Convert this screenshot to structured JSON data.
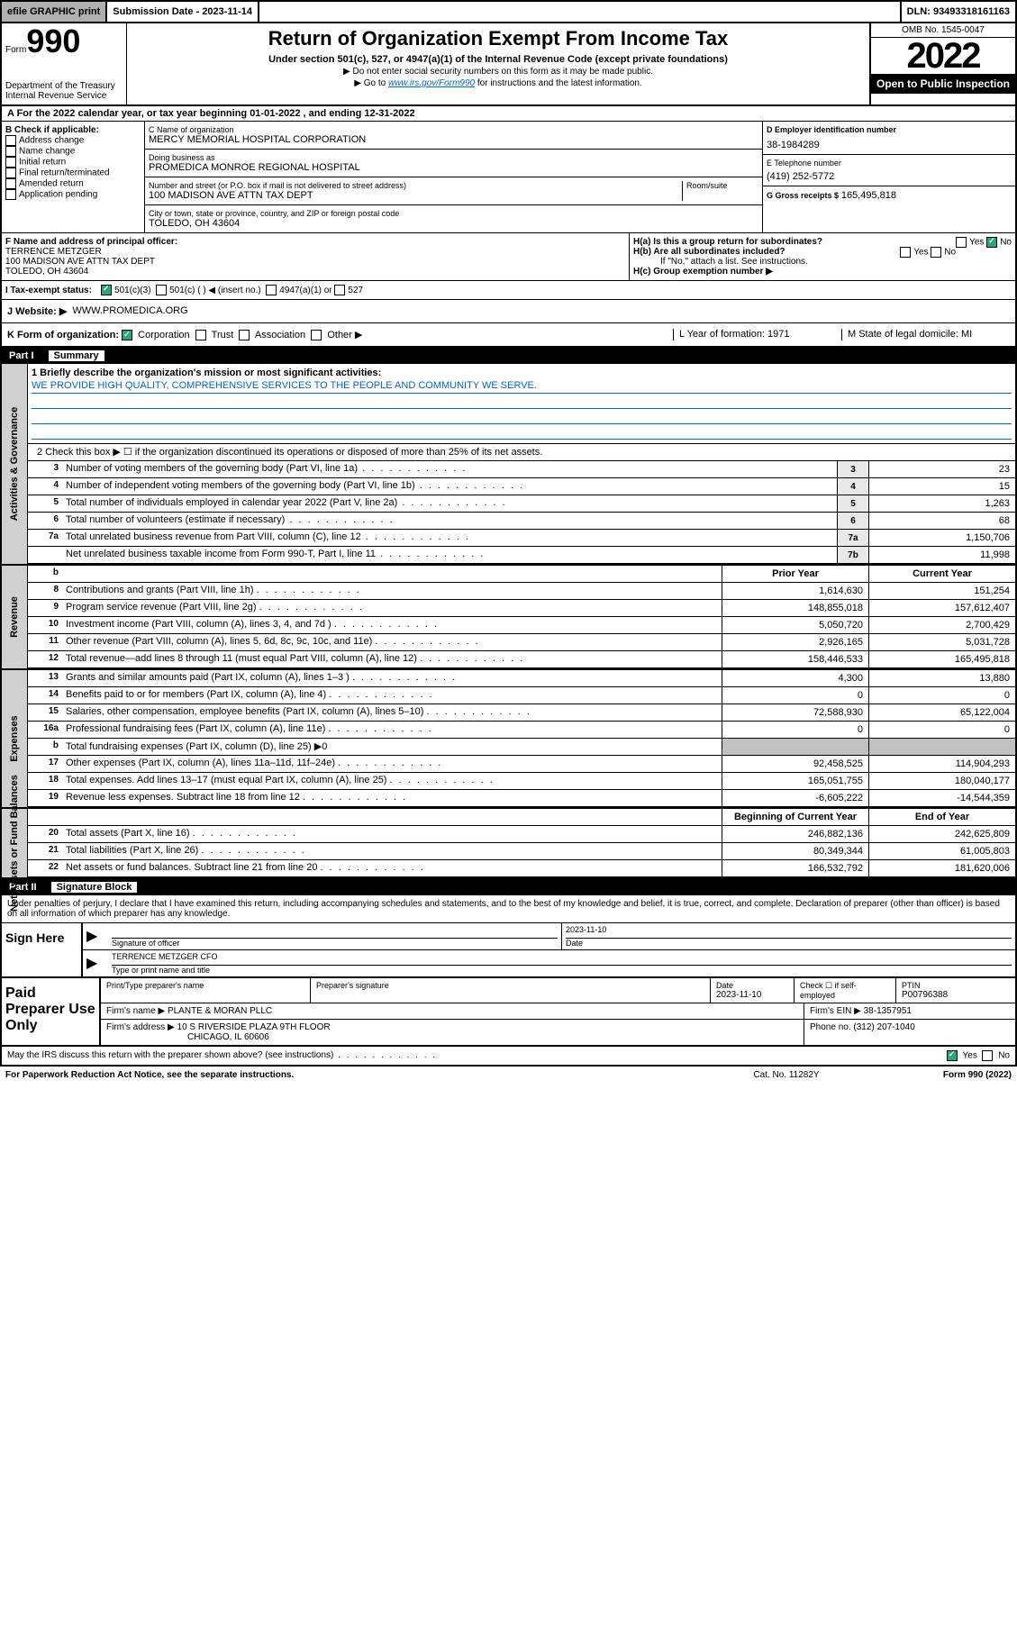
{
  "topbar": {
    "efile": "efile GRAPHIC print",
    "subdate_lbl": "Submission Date - 2023-11-14",
    "dln": "DLN: 93493318161163"
  },
  "header": {
    "form_word": "Form",
    "form_num": "990",
    "dept": "Department of the Treasury",
    "irs": "Internal Revenue Service",
    "title": "Return of Organization Exempt From Income Tax",
    "sub": "Under section 501(c), 527, or 4947(a)(1) of the Internal Revenue Code (except private foundations)",
    "note1": "▶ Do not enter social security numbers on this form as it may be made public.",
    "note2_pre": "▶ Go to ",
    "note2_link": "www.irs.gov/Form990",
    "note2_post": " for instructions and the latest information.",
    "omb": "OMB No. 1545-0047",
    "year": "2022",
    "open": "Open to Public Inspection"
  },
  "secA": "A For the 2022 calendar year, or tax year beginning 01-01-2022   , and ending 12-31-2022",
  "colB": {
    "hdr": "B Check if applicable:",
    "opts": [
      "Address change",
      "Name change",
      "Initial return",
      "Final return/terminated",
      "Amended return",
      "Application pending"
    ]
  },
  "colC": {
    "name_lbl": "C Name of organization",
    "name": "MERCY MEMORIAL HOSPITAL CORPORATION",
    "dba_lbl": "Doing business as",
    "dba": "PROMEDICA MONROE REGIONAL HOSPITAL",
    "addr_lbl": "Number and street (or P.O. box if mail is not delivered to street address)",
    "room_lbl": "Room/suite",
    "addr": "100 MADISON AVE ATTN TAX DEPT",
    "city_lbl": "City or town, state or province, country, and ZIP or foreign postal code",
    "city": "TOLEDO, OH  43604"
  },
  "colD": {
    "ein_lbl": "D Employer identification number",
    "ein": "38-1984289",
    "tel_lbl": "E Telephone number",
    "tel": "(419) 252-5772",
    "gross_lbl": "G Gross receipts $",
    "gross": "165,495,818"
  },
  "rowF": {
    "lbl": "F Name and address of principal officer:",
    "name": "TERRENCE METZGER",
    "addr": "100 MADISON AVE ATTN TAX DEPT",
    "city": "TOLEDO, OH  43604"
  },
  "rowH": {
    "ha": "H(a)  Is this a group return for subordinates?",
    "yes": "Yes",
    "no": "No",
    "hb": "H(b)  Are all subordinates included?",
    "hb_note": "If \"No,\" attach a list. See instructions.",
    "hc": "H(c)  Group exemption number ▶"
  },
  "rowI": {
    "lbl": "I     Tax-exempt status:",
    "o1": "501(c)(3)",
    "o2": "501(c) (   ) ◀ (insert no.)",
    "o3": "4947(a)(1) or",
    "o4": "527"
  },
  "rowJ": {
    "lbl": "J     Website: ▶",
    "val": "WWW.PROMEDICA.ORG"
  },
  "rowK": {
    "lbl": "K Form of organization:",
    "o1": "Corporation",
    "o2": "Trust",
    "o3": "Association",
    "o4": "Other ▶",
    "L": "L Year of formation: 1971",
    "M": "M State of legal domicile: MI"
  },
  "part1": {
    "num": "Part I",
    "title": "Summary"
  },
  "mission": {
    "lbl": "1   Briefly describe the organization's mission or most significant activities:",
    "text": "WE PROVIDE HIGH QUALITY, COMPREHENSIVE SERVICES TO THE PEOPLE AND COMMUNITY WE SERVE."
  },
  "line2": "2    Check this box ▶ ☐  if the organization discontinued its operations or disposed of more than 25% of its net assets.",
  "govRows": [
    {
      "n": "3",
      "t": "Number of voting members of the governing body (Part VI, line 1a)",
      "b": "3",
      "v": "23"
    },
    {
      "n": "4",
      "t": "Number of independent voting members of the governing body (Part VI, line 1b)",
      "b": "4",
      "v": "15"
    },
    {
      "n": "5",
      "t": "Total number of individuals employed in calendar year 2022 (Part V, line 2a)",
      "b": "5",
      "v": "1,263"
    },
    {
      "n": "6",
      "t": "Total number of volunteers (estimate if necessary)",
      "b": "6",
      "v": "68"
    },
    {
      "n": "7a",
      "t": "Total unrelated business revenue from Part VIII, column (C), line 12",
      "b": "7a",
      "v": "1,150,706"
    },
    {
      "n": "",
      "t": "Net unrelated business taxable income from Form 990-T, Part I, line 11",
      "b": "7b",
      "v": "11,998"
    }
  ],
  "pyHdr": {
    "b": "b",
    "p": "Prior Year",
    "c": "Current Year"
  },
  "revRows": [
    {
      "n": "8",
      "t": "Contributions and grants (Part VIII, line 1h)",
      "p": "1,614,630",
      "c": "151,254"
    },
    {
      "n": "9",
      "t": "Program service revenue (Part VIII, line 2g)",
      "p": "148,855,018",
      "c": "157,612,407"
    },
    {
      "n": "10",
      "t": "Investment income (Part VIII, column (A), lines 3, 4, and 7d )",
      "p": "5,050,720",
      "c": "2,700,429"
    },
    {
      "n": "11",
      "t": "Other revenue (Part VIII, column (A), lines 5, 6d, 8c, 9c, 10c, and 11e)",
      "p": "2,926,165",
      "c": "5,031,728"
    },
    {
      "n": "12",
      "t": "Total revenue—add lines 8 through 11 (must equal Part VIII, column (A), line 12)",
      "p": "158,446,533",
      "c": "165,495,818"
    }
  ],
  "expRows": [
    {
      "n": "13",
      "t": "Grants and similar amounts paid (Part IX, column (A), lines 1–3 )",
      "p": "4,300",
      "c": "13,880"
    },
    {
      "n": "14",
      "t": "Benefits paid to or for members (Part IX, column (A), line 4)",
      "p": "0",
      "c": "0"
    },
    {
      "n": "15",
      "t": "Salaries, other compensation, employee benefits (Part IX, column (A), lines 5–10)",
      "p": "72,588,930",
      "c": "65,122,004"
    },
    {
      "n": "16a",
      "t": "Professional fundraising fees (Part IX, column (A), line 11e)",
      "p": "0",
      "c": "0"
    },
    {
      "n": "b",
      "t": "Total fundraising expenses (Part IX, column (D), line 25) ▶0",
      "p": "",
      "c": "",
      "gray": true
    },
    {
      "n": "17",
      "t": "Other expenses (Part IX, column (A), lines 11a–11d, 11f–24e)",
      "p": "92,458,525",
      "c": "114,904,293"
    },
    {
      "n": "18",
      "t": "Total expenses. Add lines 13–17 (must equal Part IX, column (A), line 25)",
      "p": "165,051,755",
      "c": "180,040,177"
    },
    {
      "n": "19",
      "t": "Revenue less expenses. Subtract line 18 from line 12",
      "p": "-6,605,222",
      "c": "-14,544,359"
    }
  ],
  "naHdr": {
    "p": "Beginning of Current Year",
    "c": "End of Year"
  },
  "naRows": [
    {
      "n": "20",
      "t": "Total assets (Part X, line 16)",
      "p": "246,882,136",
      "c": "242,625,809"
    },
    {
      "n": "21",
      "t": "Total liabilities (Part X, line 26)",
      "p": "80,349,344",
      "c": "61,005,803"
    },
    {
      "n": "22",
      "t": "Net assets or fund balances. Subtract line 21 from line 20",
      "p": "166,532,792",
      "c": "181,620,006"
    }
  ],
  "sideLabels": {
    "gov": "Activities & Governance",
    "rev": "Revenue",
    "exp": "Expenses",
    "na": "Net Assets or Fund Balances"
  },
  "part2": {
    "num": "Part II",
    "title": "Signature Block"
  },
  "sigIntro": "Under penalties of perjury, I declare that I have examined this return, including accompanying schedules and statements, and to the best of my knowledge and belief, it is true, correct, and complete. Declaration of preparer (other than officer) is based on all information of which preparer has any knowledge.",
  "sign": {
    "here": "Sign Here",
    "sig_lbl": "Signature of officer",
    "date": "2023-11-10",
    "date_lbl": "Date",
    "name": "TERRENCE METZGER CFO",
    "name_lbl": "Type or print name and title"
  },
  "paid": {
    "title": "Paid Preparer Use Only",
    "h1": "Print/Type preparer's name",
    "h2": "Preparer's signature",
    "h3": "Date",
    "h3v": "2023-11-10",
    "h4": "Check ☐ if self-employed",
    "h5": "PTIN",
    "h5v": "P00796388",
    "firm_lbl": "Firm's name    ▶",
    "firm": "PLANTE & MORAN PLLC",
    "ein_lbl": "Firm's EIN ▶",
    "ein": "38-1357951",
    "addr_lbl": "Firm's address ▶",
    "addr1": "10 S RIVERSIDE PLAZA 9TH FLOOR",
    "addr2": "CHICAGO, IL  60606",
    "phone_lbl": "Phone no.",
    "phone": "(312) 207-1040"
  },
  "discuss": {
    "q": "May the IRS discuss this return with the preparer shown above? (see instructions)",
    "yes": "Yes",
    "no": "No"
  },
  "footer": {
    "pra": "For Paperwork Reduction Act Notice, see the separate instructions.",
    "cat": "Cat. No. 11282Y",
    "form": "Form 990 (2022)"
  }
}
